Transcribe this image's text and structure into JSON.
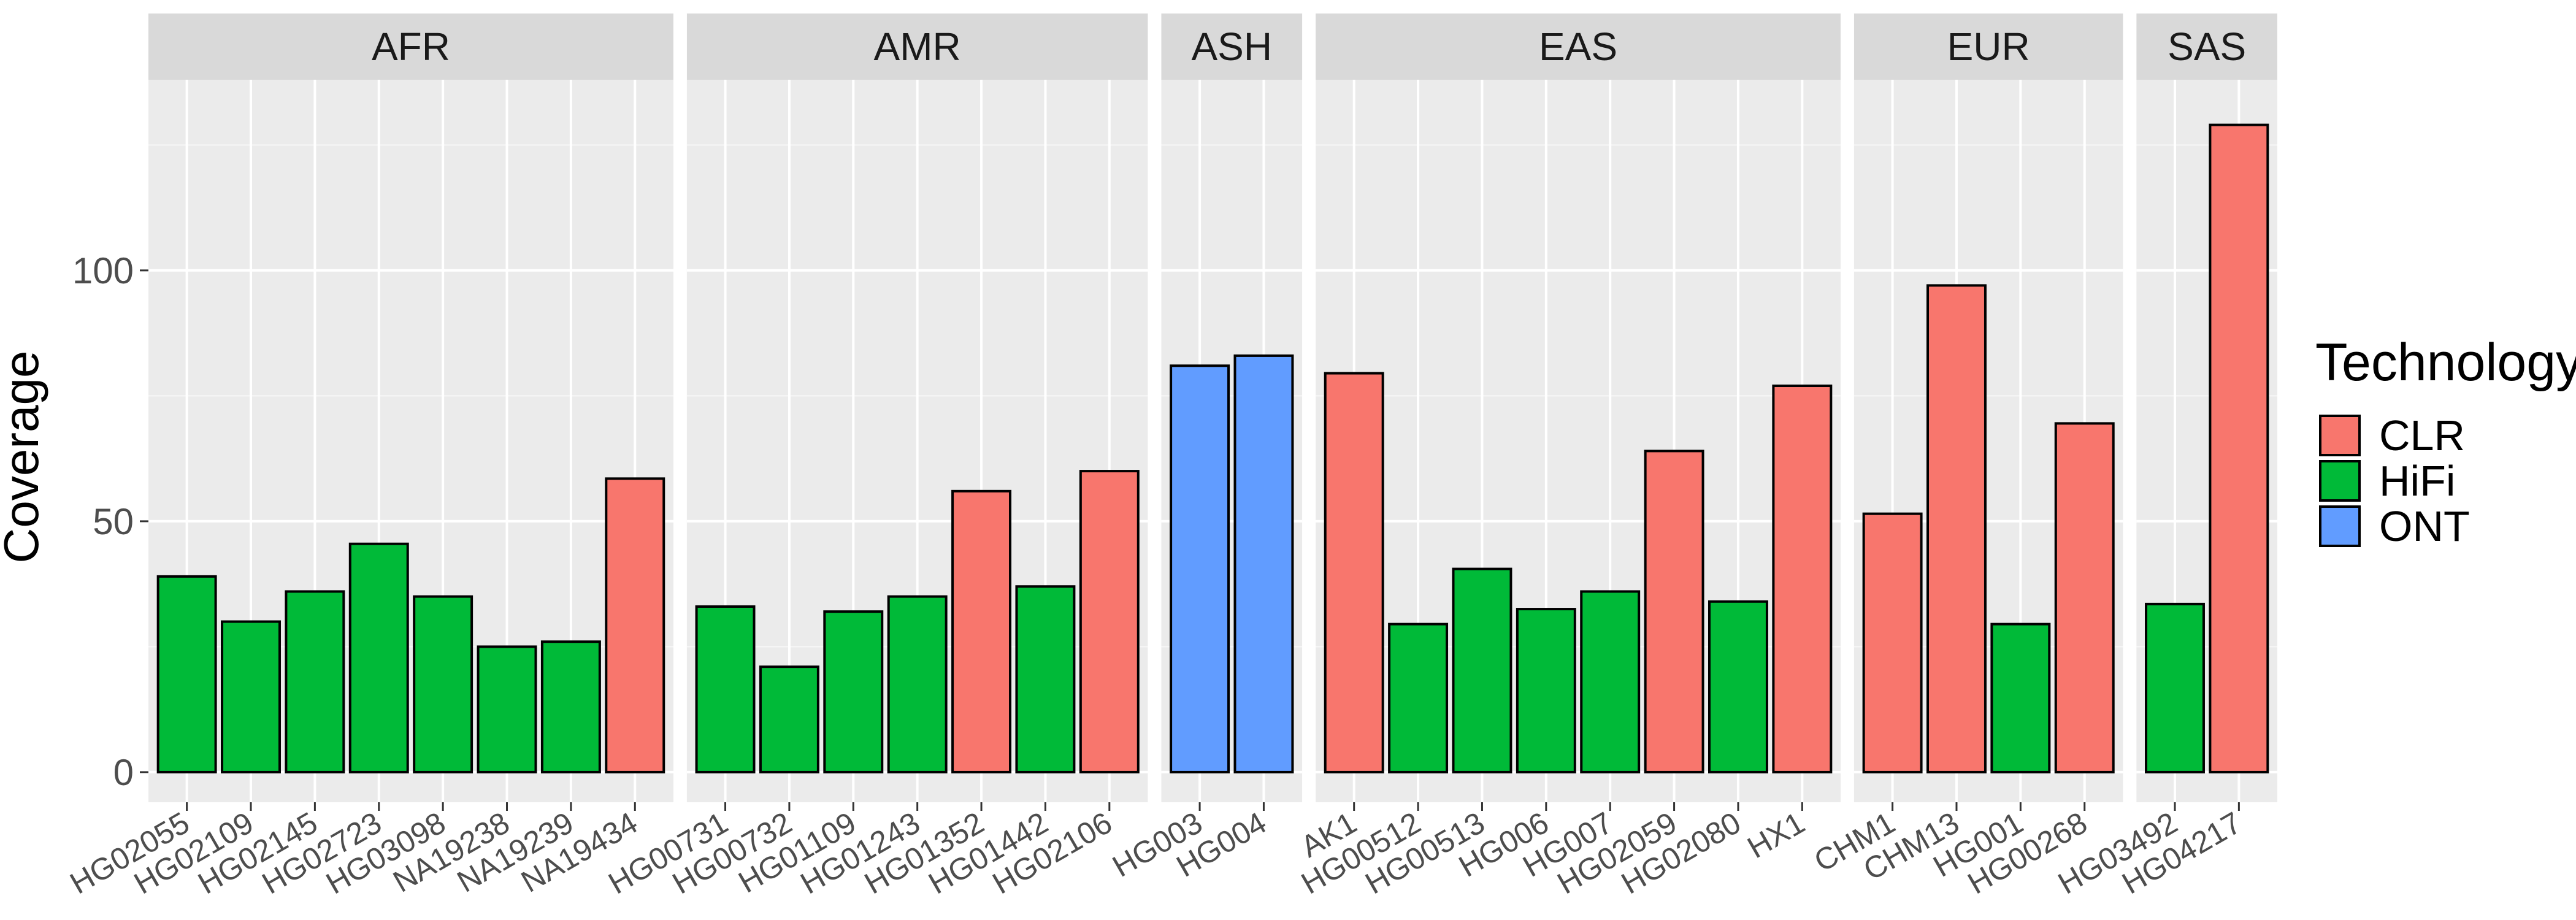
{
  "chart_data": {
    "type": "bar",
    "ylabel": "Coverage",
    "ylim": [
      -6,
      138
    ],
    "yticks": [
      0,
      50,
      100
    ],
    "grid": true,
    "legend": {
      "title": "Technology",
      "placement": "right",
      "entries": [
        {
          "name": "CLR",
          "color": "#F8766D"
        },
        {
          "name": "HiFi",
          "color": "#00BA38"
        },
        {
          "name": "ONT",
          "color": "#619CFF"
        }
      ]
    },
    "panels": [
      {
        "name": "AFR",
        "bars": [
          {
            "sample": "HG02055",
            "value": 39,
            "tech": "HiFi"
          },
          {
            "sample": "HG02109",
            "value": 30,
            "tech": "HiFi"
          },
          {
            "sample": "HG02145",
            "value": 36,
            "tech": "HiFi"
          },
          {
            "sample": "HG02723",
            "value": 45.5,
            "tech": "HiFi"
          },
          {
            "sample": "HG03098",
            "value": 35,
            "tech": "HiFi"
          },
          {
            "sample": "NA19238",
            "value": 25,
            "tech": "HiFi"
          },
          {
            "sample": "NA19239",
            "value": 26,
            "tech": "HiFi"
          },
          {
            "sample": "NA19434",
            "value": 58.5,
            "tech": "CLR"
          }
        ]
      },
      {
        "name": "AMR",
        "bars": [
          {
            "sample": "HG00731",
            "value": 33,
            "tech": "HiFi"
          },
          {
            "sample": "HG00732",
            "value": 21,
            "tech": "HiFi"
          },
          {
            "sample": "HG01109",
            "value": 32,
            "tech": "HiFi"
          },
          {
            "sample": "HG01243",
            "value": 35,
            "tech": "HiFi"
          },
          {
            "sample": "HG01352",
            "value": 56,
            "tech": "CLR"
          },
          {
            "sample": "HG01442",
            "value": 37,
            "tech": "HiFi"
          },
          {
            "sample": "HG02106",
            "value": 60,
            "tech": "CLR"
          }
        ]
      },
      {
        "name": "ASH",
        "bars": [
          {
            "sample": "HG003",
            "value": 81,
            "tech": "ONT"
          },
          {
            "sample": "HG004",
            "value": 83,
            "tech": "ONT"
          }
        ]
      },
      {
        "name": "EAS",
        "bars": [
          {
            "sample": "AK1",
            "value": 79.5,
            "tech": "CLR"
          },
          {
            "sample": "HG00512",
            "value": 29.5,
            "tech": "HiFi"
          },
          {
            "sample": "HG00513",
            "value": 40.5,
            "tech": "HiFi"
          },
          {
            "sample": "HG006",
            "value": 32.5,
            "tech": "HiFi"
          },
          {
            "sample": "HG007",
            "value": 36,
            "tech": "HiFi"
          },
          {
            "sample": "HG02059",
            "value": 64,
            "tech": "CLR"
          },
          {
            "sample": "HG02080",
            "value": 34,
            "tech": "HiFi"
          },
          {
            "sample": "HX1",
            "value": 77,
            "tech": "CLR"
          }
        ]
      },
      {
        "name": "EUR",
        "bars": [
          {
            "sample": "CHM1",
            "value": 51.5,
            "tech": "CLR"
          },
          {
            "sample": "CHM13",
            "value": 97,
            "tech": "CLR"
          },
          {
            "sample": "HG001",
            "value": 29.5,
            "tech": "HiFi"
          },
          {
            "sample": "HG00268",
            "value": 69.5,
            "tech": "CLR"
          }
        ]
      },
      {
        "name": "SAS",
        "bars": [
          {
            "sample": "HG03492",
            "value": 33.5,
            "tech": "HiFi"
          },
          {
            "sample": "HG04217",
            "value": 129,
            "tech": "CLR"
          }
        ]
      }
    ]
  }
}
